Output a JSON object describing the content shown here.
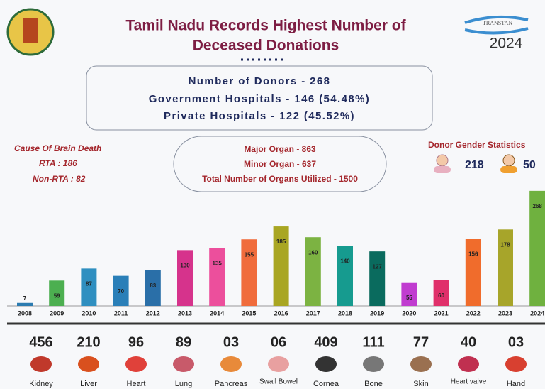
{
  "header": {
    "title": [
      "Tamil Nadu Records Highest Number of",
      "Deceased Donations"
    ],
    "logo_text": "TRANSTAN",
    "year": "2024"
  },
  "summary": [
    "Number of Donors - 268",
    "Government Hospitals - 146 (54.48%)",
    "Private Hospitals - 122 (45.52%)"
  ],
  "brain_death": {
    "title": "Cause Of Brain Death",
    "lines": [
      "RTA : 186",
      "Non-RTA : 82"
    ]
  },
  "organs_box": [
    "Major Organ - 863",
    "Minor Organ - 637",
    "Total Number of Organs Utilized - 1500"
  ],
  "gender": {
    "title": "Donor Gender Statistics",
    "male": "218",
    "female": "50"
  },
  "chart_data": {
    "type": "bar",
    "categories": [
      "2008",
      "2009",
      "2010",
      "2011",
      "2012",
      "2013",
      "2014",
      "2015",
      "2016",
      "2017",
      "2018",
      "2019",
      "2020",
      "2021",
      "2022",
      "2023",
      "2024"
    ],
    "values": [
      7,
      59,
      87,
      70,
      83,
      130,
      135,
      155,
      185,
      160,
      140,
      127,
      55,
      60,
      156,
      178,
      268
    ],
    "colors": [
      "#2b7bb0",
      "#4caf50",
      "#2f8fc0",
      "#2a7fb8",
      "#2a6fa8",
      "#d6338c",
      "#ec4f9c",
      "#f06c3c",
      "#a9a622",
      "#7cb342",
      "#169b8f",
      "#0a6b5e",
      "#c03cd0",
      "#e0306a",
      "#f06c2c",
      "#a7a52a",
      "#6fb13f"
    ]
  },
  "organs": [
    {
      "count": "456",
      "name": "Kidney"
    },
    {
      "count": "210",
      "name": "Liver"
    },
    {
      "count": "96",
      "name": "Heart"
    },
    {
      "count": "89",
      "name": "Lung"
    },
    {
      "count": "03",
      "name": "Pancreas"
    },
    {
      "count": "06",
      "name": "Swall Bowel"
    },
    {
      "count": "409",
      "name": "Cornea"
    },
    {
      "count": "111",
      "name": "Bone"
    },
    {
      "count": "77",
      "name": "Skin"
    },
    {
      "count": "40",
      "name": "Heart valve"
    },
    {
      "count": "03",
      "name": "Hand"
    }
  ]
}
